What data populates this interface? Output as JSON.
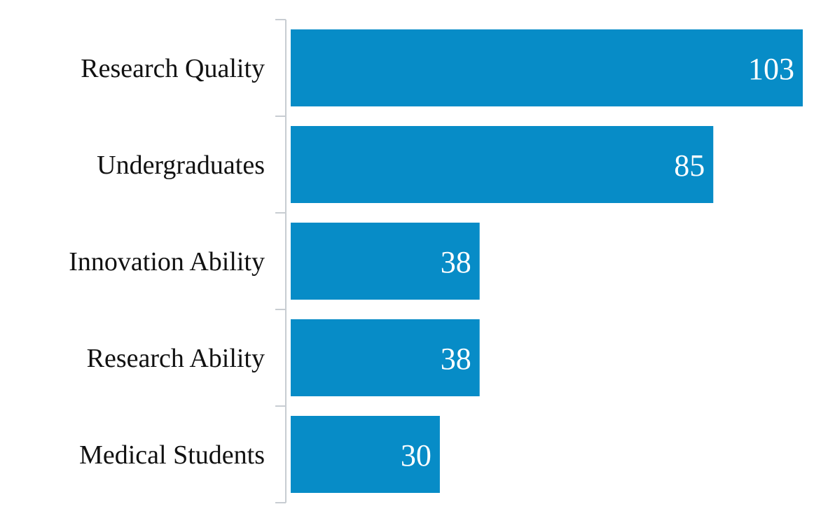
{
  "chart_data": {
    "type": "bar",
    "orientation": "horizontal",
    "categories": [
      "Research Quality",
      "Undergraduates",
      "Innovation Ability",
      "Research Ability",
      "Medical Students"
    ],
    "values": [
      103,
      85,
      38,
      38,
      30
    ],
    "data_labels": [
      "103",
      "85",
      "38",
      "38",
      "30"
    ],
    "title": "",
    "xlabel": "",
    "ylabel": "",
    "xlim": [
      0,
      103
    ],
    "grid": false,
    "legend": "none",
    "colors": {
      "bar": "#078CC7",
      "axis": "#C8CDD2",
      "category_text": "#111111",
      "value_text": "#FFFFFF"
    }
  }
}
